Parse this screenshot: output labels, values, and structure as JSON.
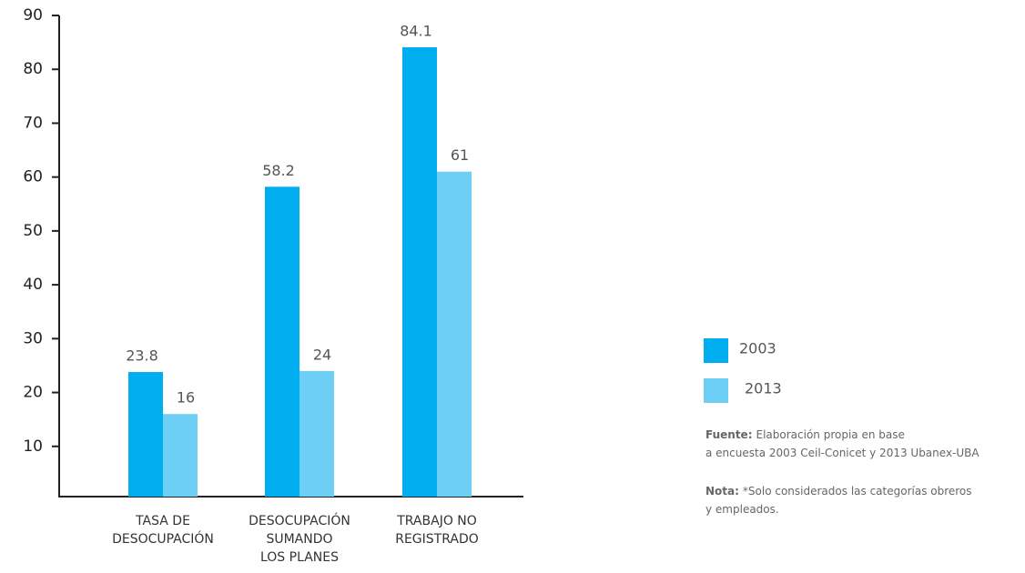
{
  "chart_data": {
    "type": "bar",
    "categories": [
      [
        "TASA DE",
        "DESOCUPACIÓN"
      ],
      [
        "DESOCUPACIÓN",
        "SUMANDO",
        "LOS PLANES"
      ],
      [
        "TRABAJO NO",
        "REGISTRADO"
      ]
    ],
    "series": [
      {
        "name": "2003",
        "color": "#00aeef",
        "values": [
          23.8,
          58.2,
          84.1
        ]
      },
      {
        "name": "2013",
        "color": "#6dcff6",
        "values": [
          16,
          24,
          61
        ]
      }
    ],
    "ylim": [
      0,
      90
    ],
    "yticks": [
      10,
      20,
      30,
      40,
      50,
      60,
      70,
      80,
      90
    ],
    "source_label": "Fuente:",
    "source": [
      "Elaboración propia en base",
      "a encuesta 2003 Ceil-Conicet y 2013 Ubanex-UBA"
    ],
    "note_label": "Nota:",
    "note": [
      "*Solo considerados las categorías obreros",
      "y empleados."
    ]
  }
}
